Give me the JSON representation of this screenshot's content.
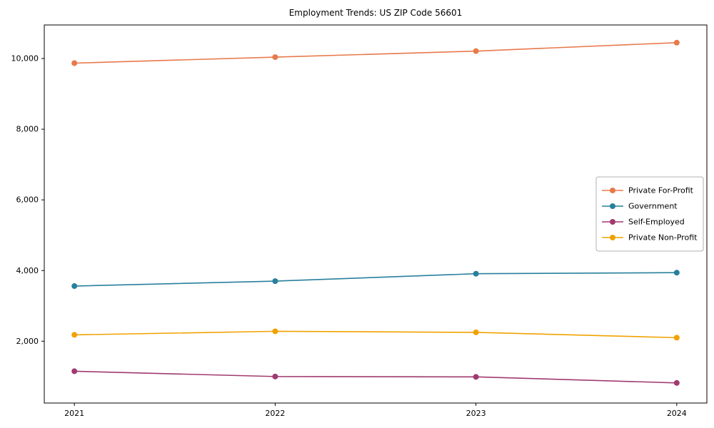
{
  "chart_data": {
    "type": "line",
    "title": "Employment Trends: US ZIP Code 56601",
    "xlabel": "",
    "ylabel": "",
    "x": [
      2021,
      2022,
      2023,
      2024
    ],
    "x_tick_labels": [
      "2021",
      "2022",
      "2023",
      "2024"
    ],
    "series": [
      {
        "name": "Private For-Profit",
        "color": "#e8794b",
        "values": [
          9870,
          10040,
          10210,
          10450
        ]
      },
      {
        "name": "Government",
        "color": "#27809c",
        "values": [
          3560,
          3700,
          3910,
          3940
        ]
      },
      {
        "name": "Self-Employed",
        "color": "#a13a70",
        "values": [
          1150,
          1000,
          990,
          820
        ]
      },
      {
        "name": "Private Non-Profit",
        "color": "#f0a202",
        "values": [
          2180,
          2280,
          2250,
          2100
        ]
      }
    ],
    "yticks": [
      2000,
      4000,
      6000,
      8000,
      10000
    ],
    "ytick_labels": [
      "2,000",
      "4,000",
      "6,000",
      "8,000",
      "10,000"
    ],
    "ylim": [
      250,
      10950
    ],
    "xlim": [
      2020.85,
      2024.15
    ],
    "grid": false,
    "legend_position": "center right",
    "marker": "circle",
    "axis_color": "#000000",
    "legend_border_color": "#b0b0b0",
    "background_color": "#ffffff"
  }
}
